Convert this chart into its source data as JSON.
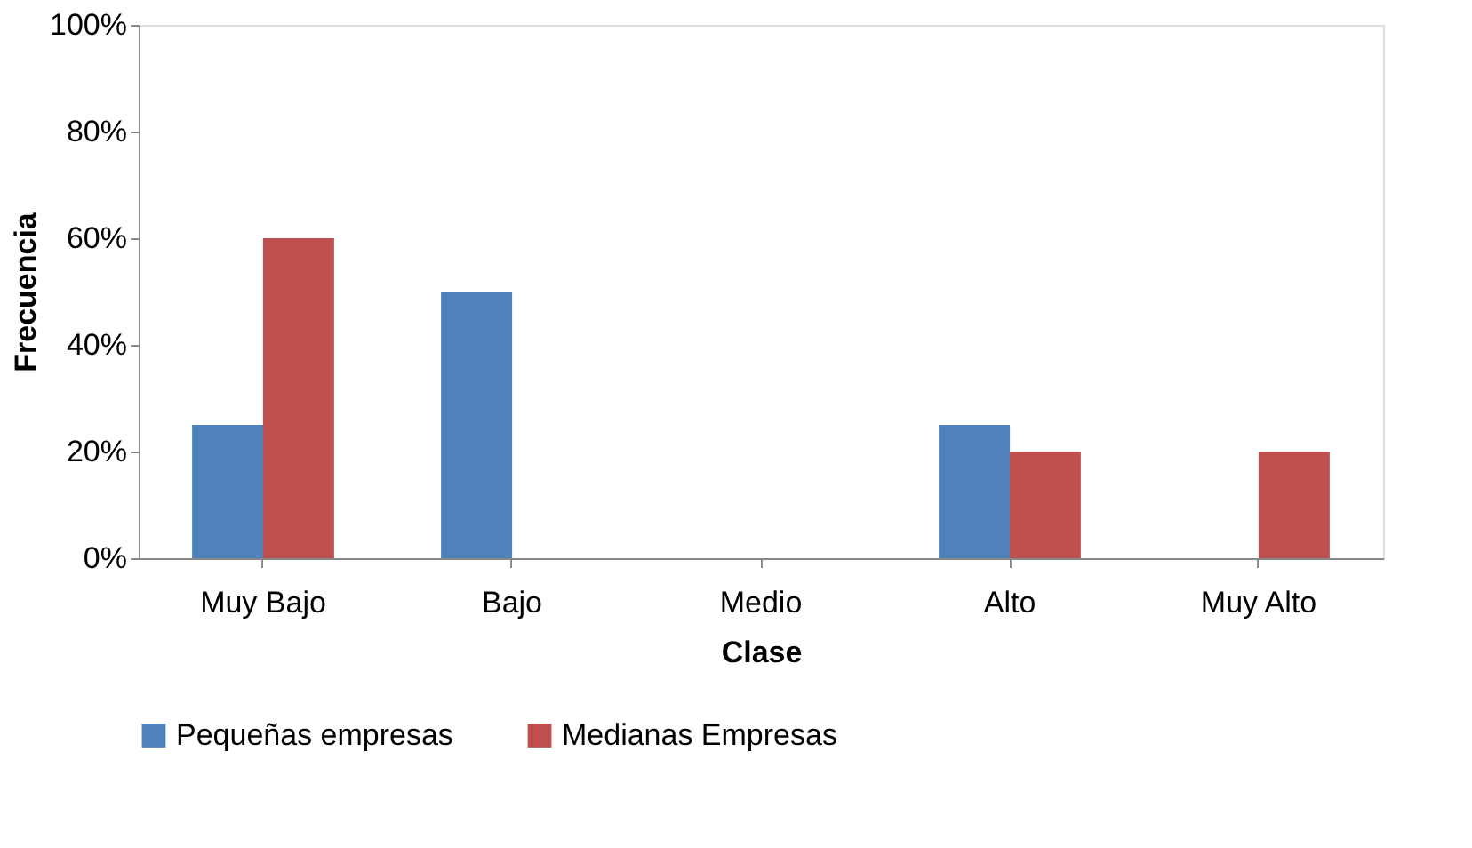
{
  "chart_data": {
    "type": "bar",
    "xlabel": "Clase",
    "ylabel": "Frecuencia",
    "categories": [
      "Muy Bajo",
      "Bajo",
      "Medio",
      "Alto",
      "Muy Alto"
    ],
    "series": [
      {
        "name": "Pequeñas empresas",
        "color": "#4f81bd",
        "values": [
          25,
          50,
          0,
          25,
          0
        ]
      },
      {
        "name": "Medianas Empresas",
        "color": "#c0504d",
        "values": [
          60,
          0,
          0,
          20,
          20
        ]
      }
    ],
    "ylim": [
      0,
      100
    ],
    "yticks": [
      {
        "value": 0,
        "label": "0%"
      },
      {
        "value": 20,
        "label": "20%"
      },
      {
        "value": 40,
        "label": "40%"
      },
      {
        "value": 60,
        "label": "60%"
      },
      {
        "value": 80,
        "label": "80%"
      },
      {
        "value": 100,
        "label": "100%"
      }
    ],
    "grid": false,
    "legend": "bottom"
  }
}
